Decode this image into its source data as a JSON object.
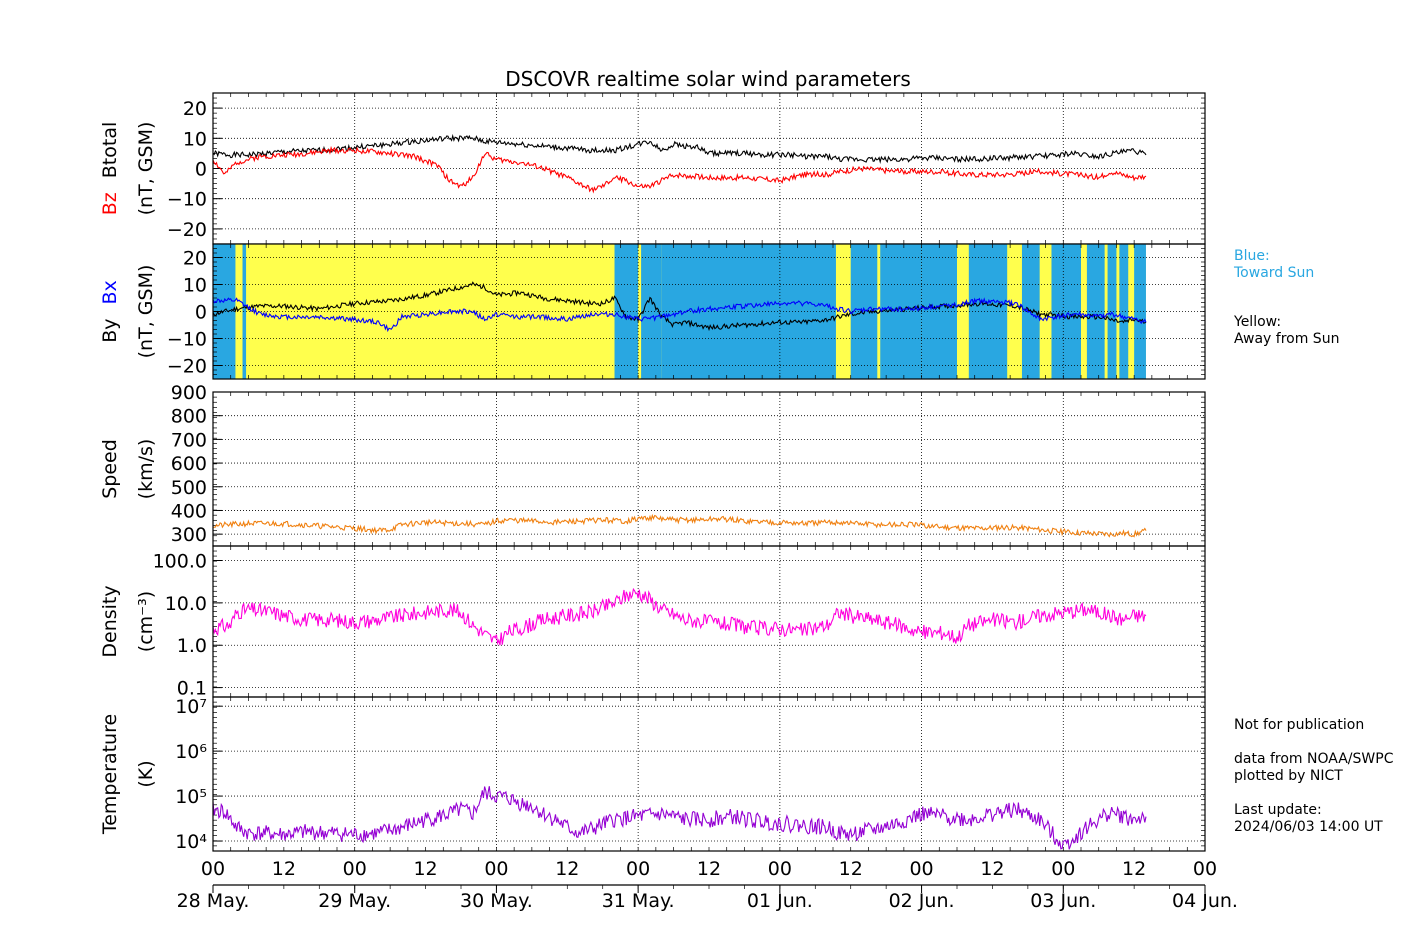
{
  "title": "DSCOVR realtime solar wind parameters",
  "colors": {
    "btotal": "#000000",
    "bz": "#ff0000",
    "by": "#000000",
    "bx": "#0000ff",
    "speed": "#f08010",
    "density": "#ff00dd",
    "temperature": "#9400d3",
    "toward_sun": "#29a7e1",
    "away_from_sun": "#ffff4d"
  },
  "time_axis": {
    "range_hours": [
      0,
      168
    ],
    "data_end_hour": 158,
    "tick_labels": [
      "00",
      "12",
      "00",
      "12",
      "00",
      "12",
      "00",
      "12",
      "00",
      "12",
      "00",
      "12",
      "00",
      "12",
      "00"
    ],
    "date_labels": [
      "28 May.",
      "29 May.",
      "30 May.",
      "31 May.",
      "01 Jun.",
      "02 Jun.",
      "03 Jun.",
      "04 Jun."
    ]
  },
  "side_notes": {
    "blue_label": "Blue:",
    "blue_desc": "Toward Sun",
    "yellow_label": "Yellow:",
    "yellow_desc": "Away from Sun",
    "not_for_publication": "Not for publication",
    "source_line1": "data from NOAA/SWPC",
    "source_line2": "plotted by NICT",
    "last_update_label": "Last update:",
    "last_update_value": "2024/06/03 14:00 UT"
  },
  "chart_data": [
    {
      "type": "line",
      "panel": "btotal_bz",
      "ylabel_parts": [
        "Bz",
        "Btotal",
        "(nT, GSM)"
      ],
      "ylim": [
        -25,
        25
      ],
      "yticks": [
        20,
        10,
        0,
        -10,
        -20
      ],
      "ytick_labels": [
        "20",
        "10",
        "0",
        "−10",
        "−20"
      ],
      "grid": true,
      "series": [
        {
          "name": "Btotal",
          "x": [
            0,
            3,
            6,
            12,
            18,
            24,
            30,
            34,
            40,
            44,
            46,
            52,
            58,
            64,
            68,
            70,
            72,
            74,
            76,
            78,
            82,
            84,
            86,
            90,
            94,
            98,
            100,
            104,
            106,
            110,
            116,
            122,
            128,
            134,
            140,
            146,
            150,
            152,
            154,
            156,
            158
          ],
          "values": [
            5,
            4.5,
            4.5,
            5.5,
            6,
            7,
            8,
            9,
            10,
            10,
            9,
            8,
            7,
            6,
            6,
            7,
            8,
            9,
            6,
            8,
            7,
            5,
            5,
            5,
            4.5,
            4.5,
            4,
            4,
            3,
            3,
            3,
            3.5,
            3,
            3.5,
            4,
            5,
            4,
            5,
            5.5,
            6,
            4.5
          ]
        },
        {
          "name": "Bz",
          "x": [
            0,
            2,
            4,
            8,
            12,
            16,
            20,
            24,
            30,
            34,
            38,
            40,
            42,
            44,
            46,
            48,
            52,
            56,
            60,
            62,
            64,
            66,
            68,
            70,
            72,
            74,
            78,
            84,
            90,
            96,
            100,
            104,
            106,
            110,
            116,
            122,
            128,
            132,
            134,
            140,
            146,
            150,
            152,
            154,
            156,
            158
          ],
          "values": [
            3,
            -2,
            2,
            4,
            4.5,
            5,
            6,
            6,
            5,
            4,
            1,
            -4,
            -6,
            -3,
            5,
            3,
            2,
            0,
            -3,
            -5,
            -7,
            -6,
            -3,
            -4,
            -6,
            -6,
            -2,
            -3,
            -3,
            -4,
            -2,
            -2,
            -1,
            0,
            -1,
            -1,
            -2,
            -2,
            -2,
            -1,
            -2,
            -3,
            -1,
            -2,
            -3,
            -2.5
          ]
        }
      ]
    },
    {
      "type": "line",
      "panel": "by_bx",
      "ylabel_parts": [
        "By",
        "Bx",
        "(nT, GSM)"
      ],
      "ylim": [
        -25,
        25
      ],
      "yticks": [
        20,
        10,
        0,
        -10,
        -20
      ],
      "ytick_labels": [
        "20",
        "10",
        "0",
        "−10",
        "−20"
      ],
      "grid": true,
      "sector_toward_sun_hours": [
        [
          0,
          3.8
        ],
        [
          5,
          5.6
        ],
        [
          68,
          72
        ],
        [
          72.5,
          76
        ],
        [
          76,
          105.5
        ],
        [
          108,
          112.5
        ],
        [
          113,
          120
        ],
        [
          120,
          126
        ],
        [
          128,
          134.5
        ],
        [
          137,
          140
        ],
        [
          142,
          147
        ],
        [
          148,
          151
        ],
        [
          151.5,
          153
        ],
        [
          153.5,
          155
        ],
        [
          156,
          158
        ]
      ],
      "series": [
        {
          "name": "By",
          "x": [
            0,
            4,
            8,
            12,
            18,
            24,
            30,
            36,
            40,
            44,
            46,
            48,
            52,
            56,
            60,
            64,
            66,
            68,
            70,
            72,
            74,
            76,
            78,
            80,
            84,
            90,
            96,
            100,
            104,
            108,
            112,
            118,
            124,
            130,
            136,
            140,
            146,
            150,
            152,
            154,
            156,
            158
          ],
          "values": [
            -1,
            1,
            2,
            2,
            1,
            3,
            4,
            6,
            8,
            10,
            9,
            6,
            7,
            5,
            4,
            3,
            3,
            5,
            -2,
            -3,
            5,
            -2,
            -5,
            -4,
            -6,
            -5,
            -4,
            -4,
            -3,
            -1,
            0,
            1,
            2,
            3,
            2,
            -1,
            -2,
            -2,
            -3,
            -4,
            -3,
            -4
          ]
        },
        {
          "name": "Bx",
          "x": [
            0,
            4,
            8,
            12,
            18,
            24,
            28,
            30,
            32,
            36,
            40,
            44,
            46,
            48,
            52,
            56,
            60,
            64,
            68,
            72,
            76,
            80,
            84,
            90,
            96,
            100,
            104,
            108,
            112,
            118,
            124,
            130,
            136,
            140,
            146,
            150,
            152,
            154,
            156,
            158
          ],
          "values": [
            4,
            4,
            -1,
            -2,
            -2,
            -3,
            -4,
            -7,
            -2,
            -1,
            0,
            0,
            -3,
            -1,
            -2,
            -2,
            -3,
            -1,
            -1,
            -3,
            -2,
            0,
            1,
            2,
            3,
            3,
            2,
            0,
            1,
            1,
            2,
            4,
            3,
            -3,
            -1,
            -2,
            -1,
            -2,
            -3,
            -4
          ]
        }
      ]
    },
    {
      "type": "line",
      "panel": "speed",
      "ylabel_parts": [
        "Speed",
        "(km/s)"
      ],
      "ylim": [
        250,
        900
      ],
      "yticks": [
        900,
        800,
        700,
        600,
        500,
        400,
        300
      ],
      "ytick_labels": [
        "900",
        "800",
        "700",
        "600",
        "500",
        "400",
        "300"
      ],
      "grid": true,
      "series": [
        {
          "name": "Speed",
          "x": [
            0,
            6,
            12,
            18,
            24,
            28,
            30,
            32,
            36,
            42,
            46,
            48,
            50,
            54,
            58,
            62,
            66,
            70,
            72,
            74,
            78,
            82,
            86,
            90,
            96,
            100,
            106,
            112,
            118,
            124,
            130,
            134,
            138,
            140,
            144,
            148,
            152,
            154,
            156,
            158
          ],
          "values": [
            335,
            345,
            345,
            335,
            325,
            315,
            320,
            340,
            350,
            345,
            340,
            355,
            360,
            355,
            350,
            355,
            360,
            355,
            365,
            370,
            360,
            360,
            365,
            355,
            350,
            345,
            350,
            340,
            340,
            330,
            325,
            330,
            325,
            320,
            310,
            305,
            300,
            305,
            300,
            315
          ]
        }
      ]
    },
    {
      "type": "line",
      "panel": "density",
      "ylabel_parts": [
        "Density",
        "(cm⁻³)"
      ],
      "log": true,
      "ylim": [
        0.06,
        220
      ],
      "yticks": [
        100,
        10,
        1,
        0.1
      ],
      "ytick_labels": [
        "100.0",
        "10.0",
        "1.0",
        "0.1"
      ],
      "grid": true,
      "series": [
        {
          "name": "Density",
          "x": [
            0,
            3,
            4,
            6,
            10,
            12,
            16,
            20,
            24,
            28,
            32,
            36,
            40,
            42,
            44,
            46,
            48,
            50,
            52,
            56,
            60,
            64,
            68,
            70,
            72,
            74,
            76,
            80,
            84,
            88,
            92,
            96,
            100,
            104,
            106,
            108,
            112,
            116,
            120,
            124,
            126,
            128,
            132,
            136,
            140,
            144,
            148,
            150,
            152,
            154,
            156,
            158
          ],
          "values": [
            2.5,
            3,
            6,
            7,
            6,
            5,
            4,
            4,
            3.5,
            4,
            5,
            6,
            7,
            6,
            3,
            1.8,
            1.2,
            2,
            2.5,
            4,
            5,
            6,
            10,
            15,
            18,
            12,
            7,
            4,
            3.5,
            3,
            2.5,
            2.5,
            2.2,
            3,
            6,
            5,
            4,
            3,
            2,
            2,
            1.5,
            3,
            4,
            3.5,
            5,
            6,
            7,
            6,
            5,
            4,
            5,
            5
          ]
        }
      ]
    },
    {
      "type": "line",
      "panel": "temperature",
      "ylabel_parts": [
        "Temperature",
        "(K)"
      ],
      "log": true,
      "ylim": [
        6000,
        16000000
      ],
      "yticks": [
        10000000,
        1000000,
        100000,
        10000
      ],
      "ytick_labels": [
        "10⁷",
        "10⁶",
        "10⁵",
        "10⁴"
      ],
      "grid": true,
      "series": [
        {
          "name": "Temperature",
          "x": [
            0,
            2,
            4,
            6,
            8,
            12,
            16,
            20,
            24,
            28,
            32,
            36,
            40,
            42,
            44,
            46,
            48,
            50,
            52,
            54,
            56,
            58,
            60,
            62,
            64,
            68,
            72,
            76,
            80,
            84,
            88,
            92,
            96,
            100,
            104,
            106,
            108,
            112,
            116,
            120,
            124,
            128,
            132,
            136,
            140,
            142,
            144,
            146,
            148,
            150,
            152,
            154,
            156,
            158
          ],
          "values": [
            50000,
            45000,
            20000,
            15000,
            15000,
            14000,
            16000,
            15000,
            14000,
            15000,
            20000,
            30000,
            40000,
            50000,
            40000,
            120000,
            100000,
            90000,
            70000,
            60000,
            40000,
            30000,
            20000,
            15000,
            18000,
            30000,
            35000,
            40000,
            30000,
            30000,
            35000,
            28000,
            25000,
            22000,
            20000,
            15000,
            14000,
            18000,
            25000,
            40000,
            35000,
            30000,
            40000,
            50000,
            30000,
            15000,
            8000,
            12000,
            20000,
            30000,
            45000,
            35000,
            30000,
            35000
          ]
        }
      ]
    }
  ]
}
